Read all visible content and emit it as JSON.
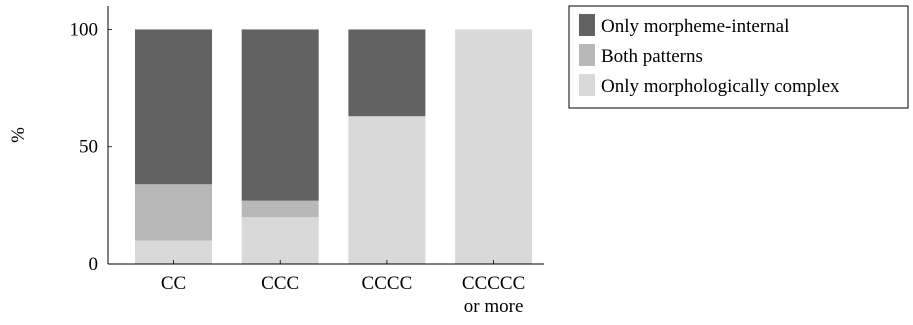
{
  "chart_data": {
    "type": "bar",
    "stacked": true,
    "categories": [
      [
        "CC"
      ],
      [
        "CCC"
      ],
      [
        "CCCC"
      ],
      [
        "CCCCC",
        "or more"
      ]
    ],
    "series": [
      {
        "name": "Only morphologically complex",
        "color": "#d9d9d9",
        "values": [
          10,
          20,
          63,
          100
        ]
      },
      {
        "name": "Both patterns",
        "color": "#b8b8b8",
        "values": [
          24,
          7,
          0,
          0
        ]
      },
      {
        "name": "Only morpheme-internal",
        "color": "#626262",
        "values": [
          66,
          73,
          37,
          0
        ]
      }
    ],
    "legend_order": [
      "Only morpheme-internal",
      "Both patterns",
      "Only morphologically complex"
    ],
    "legend_position": "right",
    "ylabel": "%",
    "xlabel": "",
    "ylim": [
      0,
      110
    ],
    "yticks": [
      0,
      50,
      100
    ],
    "grid": false
  }
}
